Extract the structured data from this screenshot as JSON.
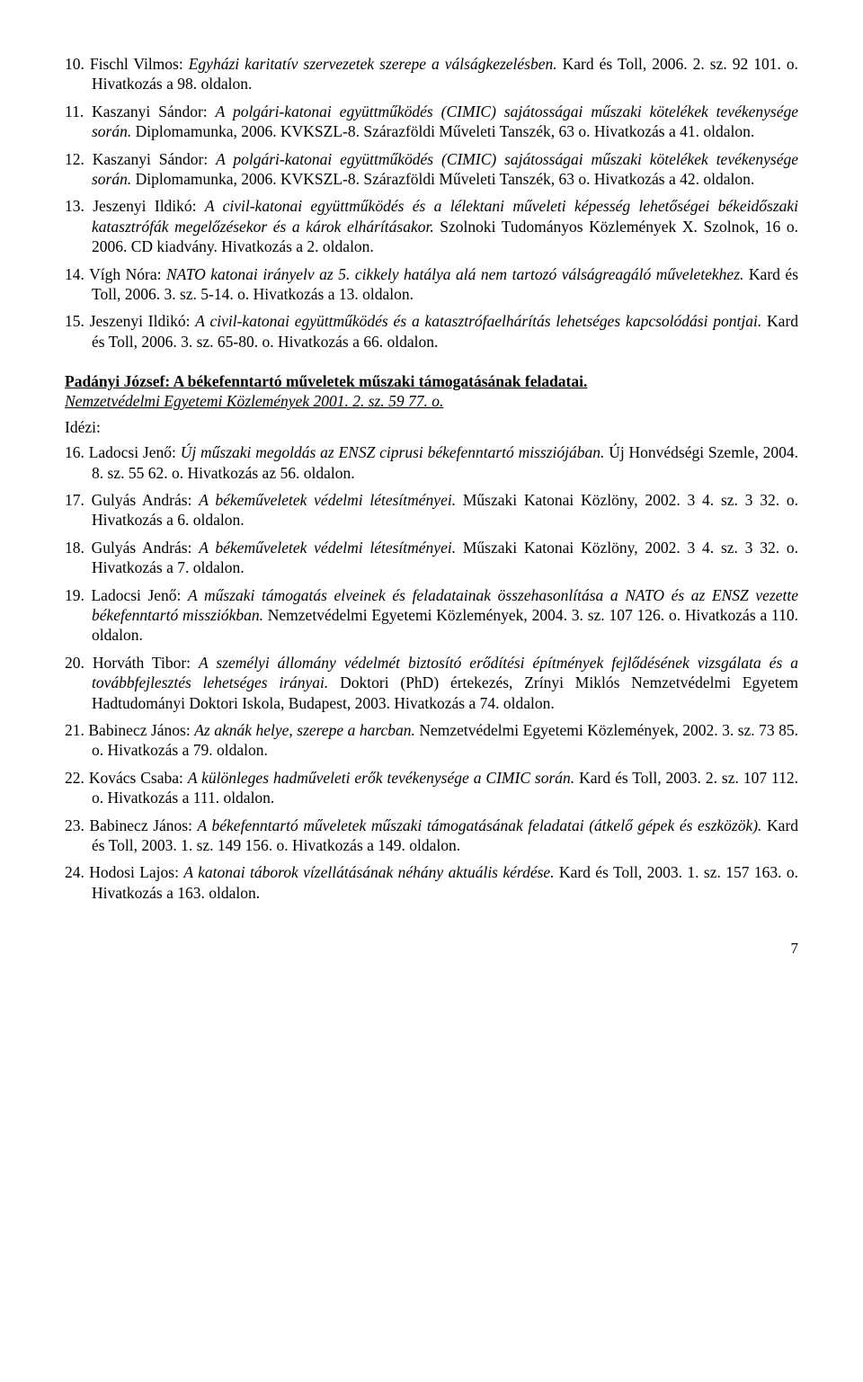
{
  "entries_top": [
    {
      "num": "10.",
      "text_parts": [
        {
          "t": "Fischl Vilmos: ",
          "i": false
        },
        {
          "t": "Egyházi karitatív szervezetek szerepe a válságkezelésben.",
          "i": true
        },
        {
          "t": " Kard és Toll, 2006. 2. sz. 92 101. o. Hivatkozás a 98. oldalon.",
          "i": false
        }
      ]
    },
    {
      "num": "11.",
      "text_parts": [
        {
          "t": "Kaszanyi Sándor: ",
          "i": false
        },
        {
          "t": "A polgári-katonai együttműködés (CIMIC) sajátosságai műszaki kötelékek tevékenysége során.",
          "i": true
        },
        {
          "t": " Diplomamunka, 2006. KVKSZL-8. Szárazföldi Műveleti Tanszék, 63 o. Hivatkozás a 41. oldalon.",
          "i": false
        }
      ]
    },
    {
      "num": "12.",
      "text_parts": [
        {
          "t": "Kaszanyi Sándor: ",
          "i": false
        },
        {
          "t": "A polgári-katonai együttműködés (CIMIC) sajátosságai műszaki kötelékek tevékenysége során.",
          "i": true
        },
        {
          "t": " Diplomamunka, 2006. KVKSZL-8. Szárazföldi Műveleti Tanszék, 63 o. Hivatkozás a 42. oldalon.",
          "i": false
        }
      ]
    },
    {
      "num": "13.",
      "text_parts": [
        {
          "t": "Jeszenyi Ildikó: ",
          "i": false
        },
        {
          "t": "A civil-katonai együttműködés és a lélektani műveleti képesség lehetőségei békeidőszaki katasztrófák megelőzésekor és a károk elhárításakor.",
          "i": true
        },
        {
          "t": " Szolnoki Tudományos Közlemények X. Szolnok, 16 o. 2006. CD kiadvány. Hivatkozás a 2. oldalon.",
          "i": false
        }
      ]
    },
    {
      "num": "14.",
      "text_parts": [
        {
          "t": "Vígh Nóra: ",
          "i": false
        },
        {
          "t": "NATO katonai irányelv az 5. cikkely hatálya alá nem tartozó válságreagáló műveletekhez.",
          "i": true
        },
        {
          "t": " Kard és Toll, 2006. 3. sz. 5-14. o. Hivatkozás a 13. oldalon.",
          "i": false
        }
      ]
    },
    {
      "num": "15.",
      "text_parts": [
        {
          "t": "Jeszenyi Ildikó: ",
          "i": false
        },
        {
          "t": "A civil-katonai együttműködés és a katasztrófaelhárítás lehetséges kapcsolódási pontjai.",
          "i": true
        },
        {
          "t": " Kard és Toll, 2006. 3. sz. 65-80. o. Hivatkozás a 66. oldalon.",
          "i": false
        }
      ]
    }
  ],
  "section": {
    "author": "Padányi József: ",
    "title": "A békefenntartó műveletek műszaki támogatásának feladatai.",
    "sub": "Nemzetvédelmi Egyetemi Közlemények 2001. 2. sz. 59 77. o.",
    "idezi": "Idézi:"
  },
  "entries_bottom": [
    {
      "num": "16.",
      "text_parts": [
        {
          "t": "Ladocsi Jenő: ",
          "i": false
        },
        {
          "t": "Új műszaki megoldás az ENSZ ciprusi békefenntartó missziójában.",
          "i": true
        },
        {
          "t": " Új Honvédségi Szemle, 2004. 8. sz. 55 62. o. Hivatkozás az 56. oldalon.",
          "i": false
        }
      ]
    },
    {
      "num": "17.",
      "text_parts": [
        {
          "t": "Gulyás András: ",
          "i": false
        },
        {
          "t": "A békeműveletek védelmi létesítményei.",
          "i": true
        },
        {
          "t": " Műszaki Katonai Közlöny, 2002. 3 4. sz. 3 32. o. Hivatkozás a 6. oldalon.",
          "i": false
        }
      ]
    },
    {
      "num": "18.",
      "text_parts": [
        {
          "t": "Gulyás András: ",
          "i": false
        },
        {
          "t": "A békeműveletek védelmi létesítményei.",
          "i": true
        },
        {
          "t": " Műszaki Katonai Közlöny, 2002. 3 4. sz. 3 32. o. Hivatkozás a 7. oldalon.",
          "i": false
        }
      ]
    },
    {
      "num": "19.",
      "text_parts": [
        {
          "t": "Ladocsi Jenő: ",
          "i": false
        },
        {
          "t": "A műszaki támogatás elveinek és feladatainak összehasonlítása a NATO és az ENSZ vezette békefenntartó missziókban.",
          "i": true
        },
        {
          "t": " Nemzetvédelmi Egyetemi Közlemények, 2004. 3. sz. 107 126. o. Hivatkozás a 110. oldalon.",
          "i": false
        }
      ]
    },
    {
      "num": "20.",
      "text_parts": [
        {
          "t": "Horváth Tibor: ",
          "i": false
        },
        {
          "t": "A személyi állomány védelmét biztosító erődítési építmények fejlődésének vizsgálata és a továbbfejlesztés lehetséges irányai.",
          "i": true
        },
        {
          "t": " Doktori (PhD) értekezés, Zrínyi Miklós Nemzetvédelmi Egyetem Hadtudományi Doktori Iskola, Budapest, 2003. Hivatkozás a 74. oldalon.",
          "i": false
        }
      ]
    },
    {
      "num": "21.",
      "text_parts": [
        {
          "t": "Babinecz János: ",
          "i": false
        },
        {
          "t": "Az aknák helye, szerepe a harcban.",
          "i": true
        },
        {
          "t": " Nemzetvédelmi Egyetemi Közlemények, 2002. 3. sz. 73 85. o. Hivatkozás a 79. oldalon.",
          "i": false
        }
      ]
    },
    {
      "num": "22.",
      "text_parts": [
        {
          "t": "Kovács Csaba: ",
          "i": false
        },
        {
          "t": "A különleges hadműveleti erők tevékenysége a CIMIC során.",
          "i": true
        },
        {
          "t": " Kard és Toll, 2003. 2. sz. 107 112. o. Hivatkozás a 111. oldalon.",
          "i": false
        }
      ]
    },
    {
      "num": "23.",
      "text_parts": [
        {
          "t": "Babinecz János: ",
          "i": false
        },
        {
          "t": "A békefenntartó műveletek műszaki támogatásának feladatai (átkelő gépek és eszközök).",
          "i": true
        },
        {
          "t": " Kard és Toll, 2003. 1. sz. 149 156. o. Hivatkozás a 149. oldalon.",
          "i": false
        }
      ]
    },
    {
      "num": "24.",
      "text_parts": [
        {
          "t": "Hodosi Lajos: ",
          "i": false
        },
        {
          "t": "A katonai táborok vízellátásának néhány aktuális kérdése.",
          "i": true
        },
        {
          "t": " Kard és Toll, 2003. 1. sz. 157 163. o. Hivatkozás a 163. oldalon.",
          "i": false
        }
      ]
    }
  ],
  "page_number": "7",
  "style": {
    "font_family": "Times New Roman",
    "font_size_pt": 12,
    "text_color": "#000000",
    "background": "#ffffff"
  }
}
